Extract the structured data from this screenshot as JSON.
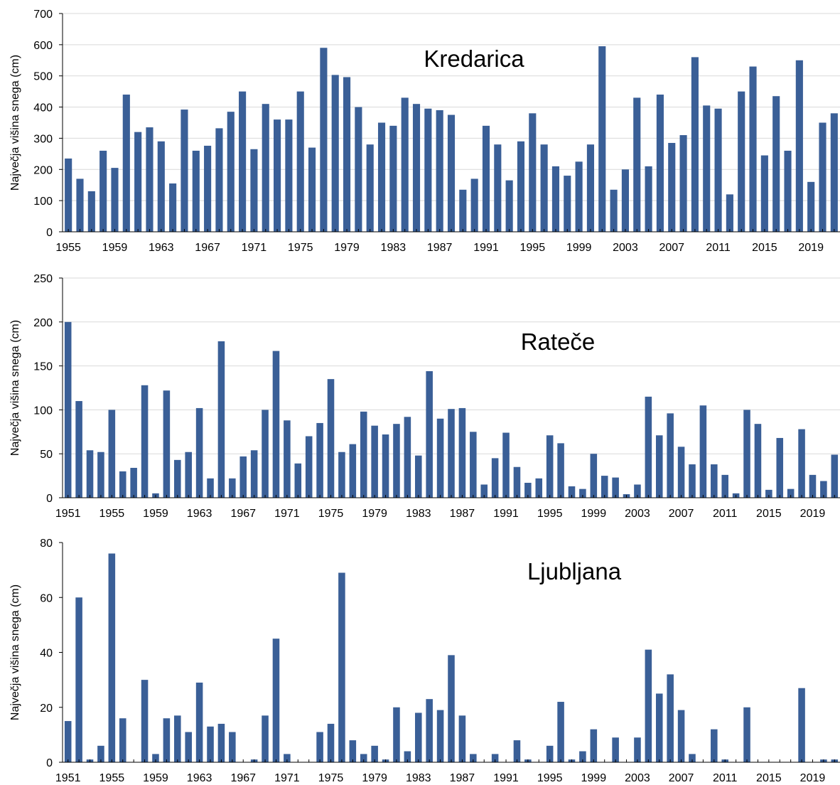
{
  "colors": {
    "bar": "#3A5F97",
    "grid": "#D9D9D9",
    "axis": "#000000"
  },
  "chart_data": [
    {
      "type": "bar",
      "title": "Kredarica",
      "ylabel": "Največja višina snega (cm)",
      "xlabel": "",
      "ylim": [
        0,
        700
      ],
      "yticks": [
        0,
        100,
        200,
        300,
        400,
        500,
        600,
        700
      ],
      "grid": true,
      "x_start": 1955,
      "x_end": 2021,
      "xtick_labels": [
        "1955",
        "1959",
        "1963",
        "1967",
        "1971",
        "1975",
        "1979",
        "1983",
        "1987",
        "1991",
        "1995",
        "1999",
        "2003",
        "2007",
        "2011",
        "2015",
        "2019"
      ],
      "values": [
        235,
        170,
        130,
        260,
        205,
        440,
        320,
        335,
        290,
        155,
        392,
        260,
        276,
        332,
        385,
        450,
        265,
        410,
        360,
        360,
        450,
        270,
        590,
        503,
        496,
        400,
        280,
        350,
        340,
        430,
        410,
        395,
        390,
        375,
        135,
        170,
        340,
        280,
        165,
        290,
        380,
        280,
        210,
        180,
        225,
        280,
        595,
        135,
        200,
        430,
        210,
        440,
        285,
        310,
        560,
        405,
        395,
        120,
        450,
        530,
        245,
        435,
        260,
        550,
        160,
        350,
        380
      ]
    },
    {
      "type": "bar",
      "title": "Rateče",
      "ylabel": "Največja višina snega (cm)",
      "xlabel": "",
      "ylim": [
        0,
        250
      ],
      "yticks": [
        0,
        50,
        100,
        150,
        200,
        250
      ],
      "grid": true,
      "x_start": 1951,
      "x_end": 2021,
      "xtick_labels": [
        "1951",
        "1955",
        "1959",
        "1963",
        "1967",
        "1971",
        "1975",
        "1979",
        "1983",
        "1987",
        "1991",
        "1995",
        "1999",
        "2003",
        "2007",
        "2011",
        "2015",
        "2019"
      ],
      "values": [
        200,
        110,
        54,
        52,
        100,
        30,
        34,
        128,
        5,
        122,
        43,
        52,
        102,
        22,
        178,
        22,
        47,
        54,
        100,
        167,
        88,
        39,
        70,
        85,
        135,
        52,
        61,
        98,
        82,
        72,
        84,
        92,
        48,
        144,
        90,
        101,
        102,
        75,
        15,
        45,
        74,
        35,
        17,
        22,
        71,
        62,
        13,
        10,
        50,
        25,
        23,
        4,
        15,
        115,
        71,
        96,
        58,
        38,
        105,
        38,
        26,
        5,
        100,
        84,
        9,
        68,
        10,
        78,
        26,
        19,
        49
      ]
    },
    {
      "type": "bar",
      "title": "Ljubljana",
      "ylabel": "Največja višina snega (cm)",
      "xlabel": "",
      "ylim": [
        0,
        80
      ],
      "yticks": [
        0,
        20,
        40,
        60,
        80
      ],
      "grid": false,
      "x_start": 1951,
      "x_end": 2021,
      "xtick_labels": [
        "1951",
        "1955",
        "1959",
        "1963",
        "1967",
        "1971",
        "1975",
        "1979",
        "1983",
        "1987",
        "1991",
        "1995",
        "1999",
        "2003",
        "2007",
        "2011",
        "2015",
        "2019"
      ],
      "values": [
        15,
        60,
        1,
        6,
        76,
        16,
        0,
        30,
        3,
        16,
        17,
        11,
        29,
        13,
        14,
        11,
        0,
        1,
        17,
        45,
        3,
        0,
        0,
        11,
        14,
        69,
        8,
        3,
        6,
        1,
        20,
        4,
        18,
        23,
        19,
        39,
        17,
        3,
        0,
        3,
        0,
        8,
        1,
        0,
        6,
        22,
        1,
        4,
        12,
        0,
        9,
        0,
        9,
        41,
        25,
        32,
        19,
        3,
        0,
        12,
        1,
        0,
        20,
        0,
        0,
        0,
        0,
        27,
        0,
        1,
        1
      ]
    }
  ]
}
